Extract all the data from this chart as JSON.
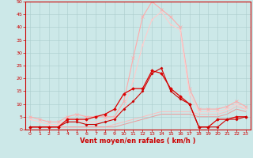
{
  "background_color": "#cce8e8",
  "grid_color": "#aacccc",
  "xlabel": "Vent moyen/en rafales ( km/h )",
  "xlabel_color": "#cc0000",
  "xlabel_fontsize": 6.0,
  "xlim": [
    -0.5,
    23.5
  ],
  "ylim": [
    0,
    50
  ],
  "yticks": [
    0,
    5,
    10,
    15,
    20,
    25,
    30,
    35,
    40,
    45,
    50
  ],
  "xticks": [
    0,
    1,
    2,
    3,
    4,
    5,
    6,
    7,
    8,
    9,
    10,
    11,
    12,
    13,
    14,
    15,
    16,
    17,
    18,
    19,
    20,
    21,
    22,
    23
  ],
  "tick_fontsize": 4.5,
  "tick_color": "#cc0000",
  "series": [
    {
      "x": [
        0,
        1,
        2,
        3,
        4,
        5,
        6,
        7,
        8,
        9,
        10,
        11,
        12,
        13,
        14,
        15,
        16,
        17,
        18,
        19,
        20,
        21,
        22,
        23
      ],
      "y": [
        5,
        4,
        3,
        3,
        5,
        6,
        5,
        5,
        5,
        5,
        11,
        28,
        44,
        50,
        47,
        44,
        40,
        16,
        8,
        8,
        8,
        9,
        11,
        9
      ],
      "color": "#ffaaaa",
      "linewidth": 0.8,
      "marker": "x",
      "markersize": 2.5,
      "alpha": 1.0,
      "zorder": 2
    },
    {
      "x": [
        0,
        1,
        2,
        3,
        4,
        5,
        6,
        7,
        8,
        9,
        10,
        11,
        12,
        13,
        14,
        15,
        16,
        17,
        18,
        19,
        20,
        21,
        22,
        23
      ],
      "y": [
        4,
        3,
        2,
        2,
        4,
        4,
        3,
        3,
        4,
        4,
        8,
        19,
        33,
        43,
        46,
        41,
        39,
        14,
        7,
        7,
        7,
        8,
        10,
        8
      ],
      "color": "#ffcccc",
      "linewidth": 0.8,
      "marker": "x",
      "markersize": 1.8,
      "alpha": 1.0,
      "zorder": 2
    },
    {
      "x": [
        0,
        1,
        2,
        3,
        4,
        5,
        6,
        7,
        8,
        9,
        10,
        11,
        12,
        13,
        14,
        15,
        16,
        17,
        18,
        19,
        20,
        21,
        22,
        23
      ],
      "y": [
        1,
        1,
        1,
        1,
        4,
        4,
        4,
        5,
        6,
        8,
        14,
        16,
        16,
        23,
        22,
        16,
        13,
        10,
        1,
        1,
        4,
        4,
        5,
        5
      ],
      "color": "#dd0000",
      "linewidth": 0.9,
      "marker": "D",
      "markersize": 1.8,
      "alpha": 1.0,
      "zorder": 5
    },
    {
      "x": [
        0,
        1,
        2,
        3,
        4,
        5,
        6,
        7,
        8,
        9,
        10,
        11,
        12,
        13,
        14,
        15,
        16,
        17,
        18,
        19,
        20,
        21,
        22,
        23
      ],
      "y": [
        1,
        1,
        1,
        1,
        3,
        3,
        2,
        2,
        3,
        4,
        8,
        11,
        15,
        22,
        24,
        15,
        12,
        10,
        1,
        1,
        1,
        4,
        4,
        5
      ],
      "color": "#cc0000",
      "linewidth": 0.8,
      "marker": "D",
      "markersize": 1.5,
      "alpha": 1.0,
      "zorder": 5
    },
    {
      "x": [
        0,
        1,
        2,
        3,
        4,
        5,
        6,
        7,
        8,
        9,
        10,
        11,
        12,
        13,
        14,
        15,
        16,
        17,
        18,
        19,
        20,
        21,
        22,
        23
      ],
      "y": [
        1,
        1,
        1,
        1,
        1,
        1,
        1,
        1,
        1,
        2,
        3,
        4,
        5,
        6,
        7,
        7,
        7,
        7,
        6,
        6,
        6,
        7,
        9,
        8
      ],
      "color": "#ffbbbb",
      "linewidth": 0.7,
      "marker": null,
      "markersize": 0,
      "alpha": 1.0,
      "zorder": 1
    },
    {
      "x": [
        0,
        1,
        2,
        3,
        4,
        5,
        6,
        7,
        8,
        9,
        10,
        11,
        12,
        13,
        14,
        15,
        16,
        17,
        18,
        19,
        20,
        21,
        22,
        23
      ],
      "y": [
        1,
        1,
        1,
        1,
        1,
        1,
        1,
        1,
        1,
        1,
        2,
        3,
        4,
        5,
        6,
        6,
        6,
        6,
        5,
        5,
        5,
        6,
        8,
        7
      ],
      "color": "#ee9999",
      "linewidth": 0.7,
      "marker": null,
      "markersize": 0,
      "alpha": 1.0,
      "zorder": 1
    }
  ],
  "spine_color": "#cc0000"
}
